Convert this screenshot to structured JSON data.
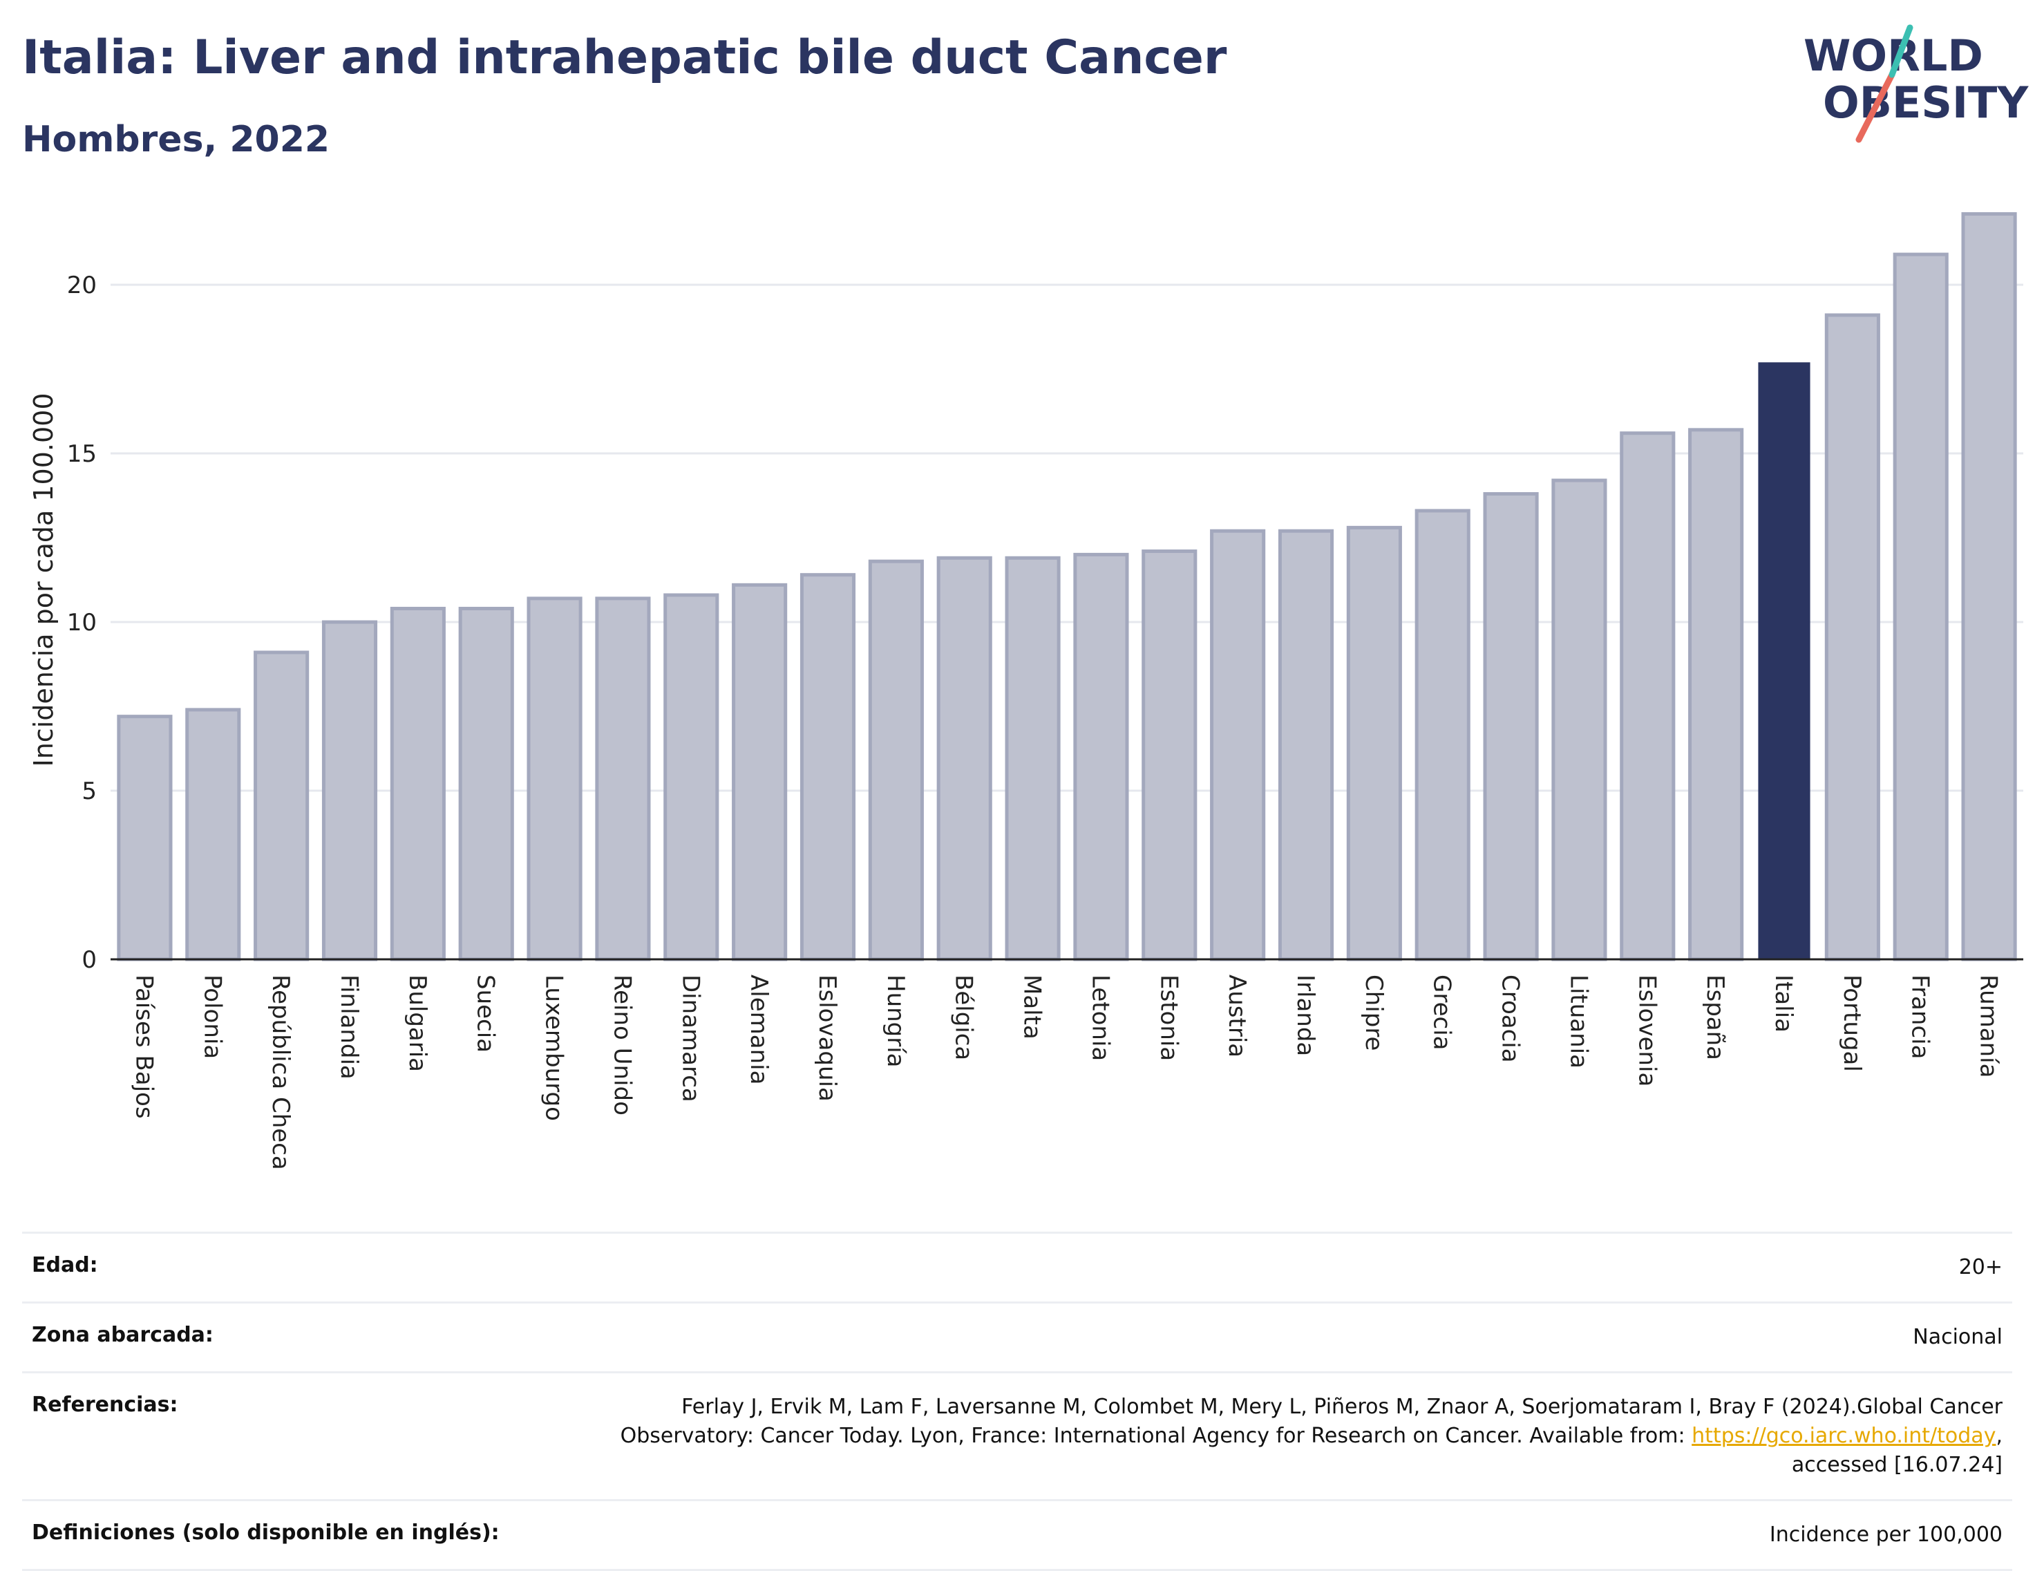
{
  "header": {
    "title": "Italia: Liver and intrahepatic bile duct Cancer",
    "subtitle": "Hombres, 2022"
  },
  "logo": {
    "line1": "WORLD",
    "line2": "OBESITY"
  },
  "colors": {
    "highlight": "#2b3561",
    "bar_fill": "#bec1cf",
    "bar_stroke": "#a3a8bd",
    "grid": "#e6e8ee",
    "link": "#e6a800"
  },
  "chart_data": {
    "type": "bar",
    "ylabel": "Incidencia por cada 100.000",
    "ylim": [
      0,
      22.5
    ],
    "yticks": [
      0,
      5,
      10,
      15,
      20
    ],
    "grid": true,
    "highlight": "Italia",
    "categories": [
      "Países Bajos",
      "Polonia",
      "República Checa",
      "Finlandia",
      "Bulgaria",
      "Suecia",
      "Luxemburgo",
      "Reino Unido",
      "Dinamarca",
      "Alemania",
      "Eslovaquia",
      "Hungría",
      "Bélgica",
      "Malta",
      "Letonia",
      "Estonia",
      "Austria",
      "Irlanda",
      "Chipre",
      "Grecia",
      "Croacia",
      "Lituania",
      "Eslovenia",
      "España",
      "Italia",
      "Portugal",
      "Francia",
      "Rumanía"
    ],
    "values": [
      7.2,
      7.4,
      9.1,
      10.0,
      10.4,
      10.4,
      10.7,
      10.7,
      10.8,
      11.1,
      11.4,
      11.8,
      11.9,
      11.9,
      12.0,
      12.1,
      12.7,
      12.7,
      12.8,
      13.3,
      13.8,
      14.2,
      15.6,
      15.7,
      17.7,
      19.1,
      20.9,
      22.1
    ]
  },
  "info": {
    "age_label": "Edad:",
    "age_value": "20+",
    "area_label": "Zona abarcada:",
    "area_value": "Nacional",
    "ref_label": "Referencias:",
    "ref_value_1": "Ferlay J, Ervik M, Lam F, Laversanne M, Colombet M, Mery L, Piñeros M, Znaor A, Soerjomataram I, Bray F (2024).Global Cancer",
    "ref_value_2": "Observatory: Cancer Today. Lyon, France: International Agency for Research on Cancer. Available from: ",
    "ref_link": "https://gco.iarc.who.int/today",
    "ref_value_3": ",",
    "ref_value_4": "accessed [16.07.24]",
    "def_label": "Definiciones (solo disponible en inglés):",
    "def_value": "Incidence per 100,000"
  }
}
